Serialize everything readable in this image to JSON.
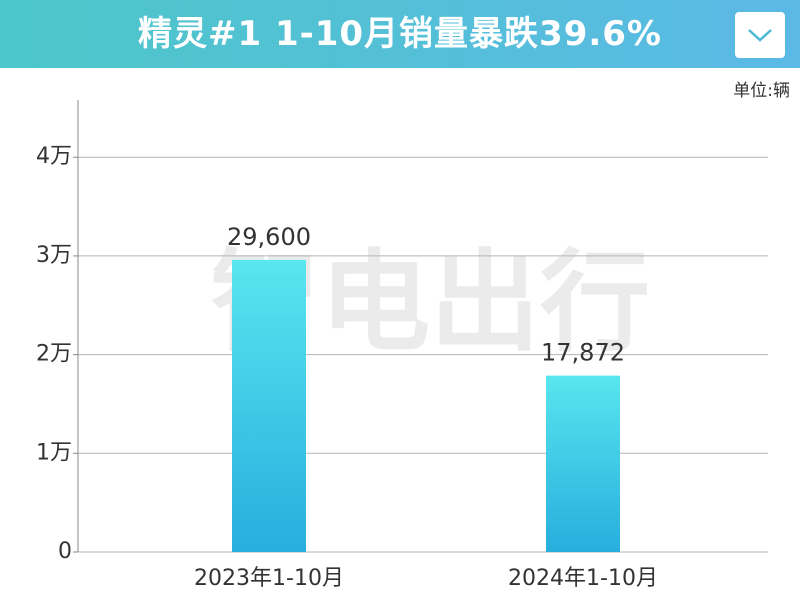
{
  "chart_data": {
    "type": "bar",
    "title": "精灵#1 1-10月销量暴跌39.6%",
    "unit": "单位:辆",
    "watermark": "智电出行",
    "categories": [
      "2023年1-10月",
      "2024年1-10月"
    ],
    "values": [
      29600,
      17872
    ],
    "value_labels": [
      "29,600",
      "17,872"
    ],
    "colors": [
      "#58e6ef",
      "#27aede"
    ],
    "ylim": [
      0,
      45800
    ],
    "yticks": [
      0,
      {
        "value": 10000,
        "label": "1万"
      },
      {
        "value": 20000,
        "label": "2万"
      },
      {
        "value": 30000,
        "label": "3万"
      },
      {
        "value": 40000,
        "label": "4万"
      }
    ],
    "grid": true
  }
}
